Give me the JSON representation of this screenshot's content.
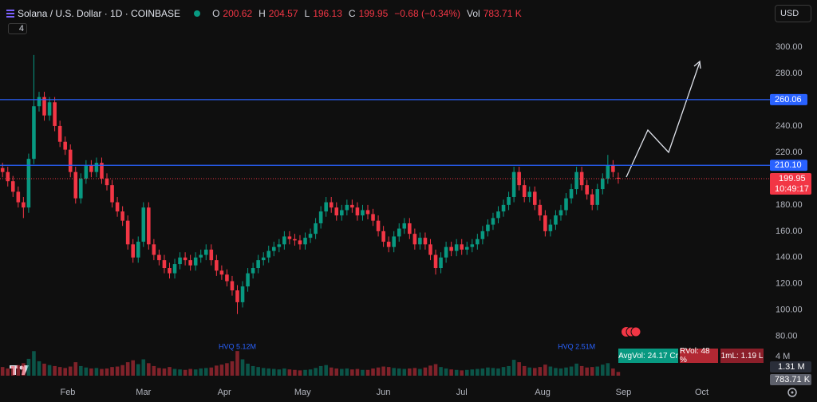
{
  "chart_data": {
    "type": "candlestick",
    "title": "Solana / U.S. Dollar · 1D · COINBASE",
    "legend_keys": {
      "open": "O",
      "high": "H",
      "low": "L",
      "close": "C",
      "volume": "Vol"
    },
    "change_label": "−0.68 (−0.34%)",
    "last_volume_label": "783.71 K",
    "volume_ma_label": "1.31 M",
    "countdown": "10:49:17",
    "currency": "USD",
    "indicator_count": 4,
    "indicator_badges": [
      "AvgVol: 24.17 Cr",
      "RVol: 48 %",
      "1mL: 1.19 L"
    ],
    "up_color": "#089981",
    "down_color": "#f23645",
    "level_color": "#2962ff",
    "levels": [
      260.06,
      {
        "value": 210.1,
        "label": "210.10"
      }
    ],
    "open": [
      208,
      205,
      198,
      190,
      182,
      178,
      215,
      255,
      262,
      248,
      258,
      240,
      228,
      222,
      205,
      185,
      200,
      210,
      205,
      212,
      200,
      195,
      182,
      175,
      168,
      150,
      140,
      152,
      178,
      150,
      142,
      138,
      132,
      128,
      135,
      140,
      138,
      134,
      140,
      142,
      146,
      138,
      130,
      127,
      122,
      115,
      106,
      118,
      128,
      132,
      138,
      140,
      145,
      148,
      150,
      156,
      154,
      153,
      150,
      155,
      158,
      166,
      175,
      182,
      178,
      172,
      176,
      180,
      178,
      172,
      176,
      173,
      168,
      160,
      152,
      148,
      156,
      162,
      166,
      158,
      150,
      155,
      150,
      142,
      132,
      140,
      148,
      145,
      150,
      146,
      148,
      150,
      154,
      160,
      165,
      170,
      175,
      180,
      186,
      205,
      195,
      186,
      190,
      180,
      172,
      160,
      165,
      172,
      176,
      185,
      192,
      205,
      195,
      188,
      180,
      192,
      200,
      210,
      200.62
    ],
    "high": [
      212,
      209,
      202,
      194,
      186,
      219,
      294,
      266,
      266,
      262,
      262,
      244,
      232,
      226,
      209,
      204,
      214,
      214,
      216,
      216,
      204,
      199,
      186,
      179,
      172,
      154,
      156,
      182,
      182,
      154,
      146,
      142,
      136,
      139,
      144,
      144,
      142,
      144,
      146,
      150,
      150,
      142,
      134,
      131,
      126,
      119,
      122,
      132,
      136,
      142,
      144,
      149,
      152,
      154,
      160,
      160,
      158,
      157,
      159,
      162,
      170,
      179,
      186,
      186,
      182,
      180,
      184,
      184,
      182,
      180,
      180,
      177,
      172,
      164,
      156,
      160,
      166,
      170,
      170,
      162,
      159,
      159,
      154,
      146,
      144,
      152,
      152,
      154,
      154,
      152,
      154,
      158,
      164,
      169,
      174,
      179,
      184,
      190,
      209,
      209,
      199,
      194,
      194,
      184,
      176,
      169,
      176,
      180,
      189,
      196,
      209,
      209,
      199,
      192,
      196,
      204,
      218,
      214,
      204.57
    ],
    "low": [
      201,
      194,
      186,
      178,
      170,
      174,
      211,
      251,
      244,
      244,
      236,
      224,
      218,
      201,
      181,
      181,
      196,
      201,
      201,
      196,
      191,
      178,
      171,
      164,
      146,
      136,
      136,
      148,
      146,
      138,
      134,
      128,
      124,
      124,
      131,
      134,
      130,
      130,
      136,
      138,
      134,
      126,
      123,
      118,
      111,
      97,
      102,
      114,
      124,
      128,
      134,
      136,
      141,
      144,
      146,
      150,
      149,
      146,
      146,
      151,
      154,
      162,
      171,
      174,
      168,
      168,
      172,
      174,
      168,
      168,
      169,
      164,
      156,
      148,
      144,
      144,
      152,
      158,
      154,
      146,
      146,
      146,
      138,
      127,
      128,
      136,
      141,
      141,
      142,
      142,
      144,
      146,
      150,
      156,
      161,
      166,
      171,
      176,
      182,
      191,
      182,
      182,
      176,
      168,
      156,
      156,
      161,
      168,
      172,
      181,
      188,
      191,
      184,
      176,
      176,
      188,
      196,
      201,
      196.13
    ],
    "close": [
      205,
      198,
      190,
      182,
      178,
      215,
      255,
      262,
      248,
      258,
      240,
      228,
      222,
      205,
      185,
      200,
      210,
      205,
      212,
      200,
      195,
      182,
      175,
      168,
      150,
      140,
      152,
      178,
      150,
      142,
      138,
      132,
      128,
      135,
      140,
      138,
      134,
      140,
      142,
      146,
      138,
      130,
      127,
      122,
      115,
      106,
      118,
      128,
      132,
      138,
      140,
      145,
      148,
      150,
      156,
      154,
      153,
      150,
      155,
      158,
      166,
      175,
      182,
      178,
      172,
      176,
      180,
      178,
      172,
      176,
      173,
      168,
      160,
      152,
      148,
      156,
      162,
      166,
      158,
      150,
      155,
      150,
      142,
      132,
      140,
      148,
      145,
      150,
      146,
      148,
      150,
      154,
      160,
      165,
      170,
      175,
      180,
      186,
      205,
      195,
      186,
      190,
      180,
      172,
      160,
      165,
      172,
      176,
      185,
      192,
      205,
      195,
      188,
      180,
      192,
      200,
      210,
      205,
      199.95
    ],
    "volume": [
      1.8,
      1.5,
      2.0,
      2.2,
      2.6,
      3.5,
      5.1,
      3.0,
      2.5,
      2.2,
      2.0,
      1.8,
      1.6,
      1.9,
      2.8,
      2.0,
      1.7,
      1.5,
      1.6,
      1.4,
      1.5,
      1.8,
      1.9,
      2.2,
      2.8,
      3.2,
      2.4,
      3.4,
      2.6,
      2.0,
      1.6,
      1.5,
      1.8,
      1.4,
      1.3,
      1.2,
      1.4,
      1.3,
      1.5,
      1.6,
      1.7,
      2.1,
      2.3,
      2.6,
      3.0,
      5.12,
      3.4,
      2.5,
      2.0,
      1.8,
      1.6,
      1.5,
      1.4,
      1.3,
      1.5,
      1.3,
      1.2,
      1.1,
      1.2,
      1.3,
      1.6,
      2.0,
      2.2,
      1.7,
      1.5,
      1.4,
      1.5,
      1.3,
      1.4,
      1.2,
      1.2,
      1.5,
      1.7,
      1.9,
      1.8,
      1.6,
      1.5,
      1.4,
      1.5,
      1.6,
      1.4,
      1.7,
      2.1,
      2.4,
      1.8,
      1.5,
      1.3,
      1.2,
      1.1,
      1.2,
      1.3,
      1.4,
      1.5,
      1.7,
      1.6,
      1.5,
      1.8,
      2.0,
      3.3,
      2.8,
      2.0,
      1.7,
      1.6,
      1.8,
      2.3,
      1.9,
      1.6,
      1.5,
      1.7,
      1.9,
      2.51,
      2.0,
      1.7,
      1.8,
      1.9,
      2.3,
      2.6,
      1.5,
      0.78371
    ],
    "volume_labels": [
      null,
      null,
      null,
      null,
      null,
      null,
      null,
      null,
      null,
      null,
      null,
      null,
      null,
      null,
      null,
      null,
      null,
      null,
      null,
      null,
      null,
      null,
      null,
      null,
      null,
      null,
      null,
      null,
      null,
      null,
      null,
      null,
      null,
      null,
      null,
      null,
      null,
      null,
      null,
      null,
      null,
      null,
      null,
      null,
      null,
      "HVQ 5.12M",
      null,
      null,
      null,
      null,
      null,
      null,
      null,
      null,
      null,
      null,
      null,
      null,
      null,
      null,
      null,
      null,
      null,
      null,
      null,
      null,
      null,
      null,
      null,
      null,
      null,
      null,
      null,
      null,
      null,
      null,
      null,
      null,
      null,
      null,
      null,
      null,
      null,
      null,
      null,
      null,
      null,
      null,
      null,
      null,
      null,
      null,
      null,
      null,
      null,
      null,
      null,
      null,
      null,
      null,
      null,
      null,
      null,
      null,
      null,
      null,
      null,
      null,
      null,
      null,
      "HVQ 2.51M",
      null,
      null,
      null,
      null,
      null,
      null,
      null,
      null
    ],
    "vlim": [
      0,
      6.8
    ],
    "vticks": [
      {
        "value": 4,
        "label": "4 M"
      }
    ],
    "ylim": [
      75,
      308.5
    ],
    "yticks": [
      {
        "value": 80,
        "label": "80.00"
      },
      {
        "value": 100,
        "label": "100.00"
      },
      {
        "value": 120,
        "label": "120.00"
      },
      {
        "value": 140,
        "label": "140.00"
      },
      {
        "value": 160,
        "label": "160.00"
      },
      {
        "value": 180,
        "label": "180.00"
      },
      {
        "value": 220,
        "label": "220.00"
      },
      {
        "value": 240,
        "label": "240.00"
      },
      {
        "value": 280,
        "label": "280.00"
      },
      {
        "value": 300,
        "label": "300.00"
      }
    ],
    "xlim": [
      -0.49,
      146.3
    ],
    "xticks": [
      {
        "value": 12.5,
        "label": "Feb"
      },
      {
        "value": 27,
        "label": "Mar"
      },
      {
        "value": 42.5,
        "label": "Apr"
      },
      {
        "value": 57.5,
        "label": "May"
      },
      {
        "value": 73,
        "label": "Jun"
      },
      {
        "value": 88,
        "label": "Jul"
      },
      {
        "value": 103.5,
        "label": "Aug"
      },
      {
        "value": 119,
        "label": "Sep"
      },
      {
        "value": 134,
        "label": "Oct"
      }
    ]
  }
}
